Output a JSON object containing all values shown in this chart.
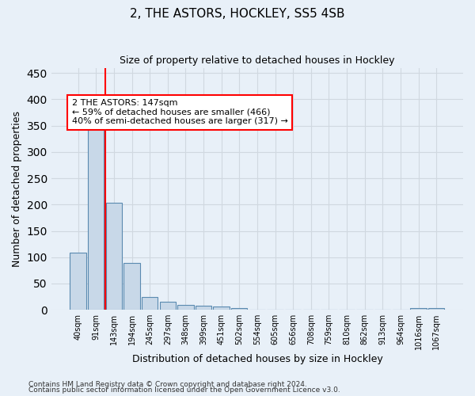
{
  "title": "2, THE ASTORS, HOCKLEY, SS5 4SB",
  "subtitle": "Size of property relative to detached houses in Hockley",
  "xlabel": "Distribution of detached houses by size in Hockley",
  "ylabel": "Number of detached properties",
  "footnote1": "Contains HM Land Registry data © Crown copyright and database right 2024.",
  "footnote2": "Contains public sector information licensed under the Open Government Licence v3.0.",
  "bar_labels": [
    "40sqm",
    "91sqm",
    "143sqm",
    "194sqm",
    "245sqm",
    "297sqm",
    "348sqm",
    "399sqm",
    "451sqm",
    "502sqm",
    "554sqm",
    "605sqm",
    "656sqm",
    "708sqm",
    "759sqm",
    "810sqm",
    "862sqm",
    "913sqm",
    "964sqm",
    "1016sqm",
    "1067sqm"
  ],
  "bar_values": [
    108,
    350,
    204,
    89,
    24,
    15,
    9,
    8,
    6,
    3,
    0,
    0,
    0,
    0,
    0,
    0,
    0,
    0,
    0,
    4,
    3
  ],
  "bar_color": "#c8d8e8",
  "bar_edge_color": "#5a8ab0",
  "grid_color": "#d0d8e0",
  "background_color": "#e8f0f8",
  "vline_x": 1.5,
  "vline_color": "red",
  "annotation_text_line1": "2 THE ASTORS: 147sqm",
  "annotation_text_line2": "← 59% of detached houses are smaller (466)",
  "annotation_text_line3": "40% of semi-detached houses are larger (317) →",
  "ylim": [
    0,
    460
  ],
  "yticks": [
    0,
    50,
    100,
    150,
    200,
    250,
    300,
    350,
    400,
    450
  ]
}
